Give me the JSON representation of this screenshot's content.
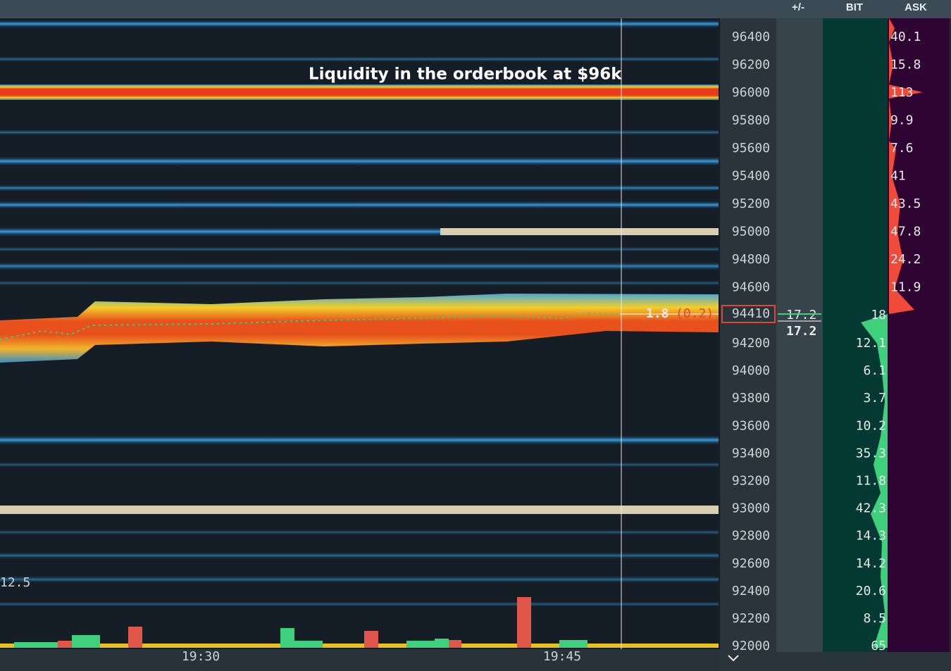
{
  "header": {
    "columns": [
      "+/-",
      "BIT",
      "ASK"
    ]
  },
  "annotation": "Liquidity in the orderbook at $96k",
  "price_ladder": [
    "96400",
    "96200",
    "96000",
    "95800",
    "95600",
    "95400",
    "95200",
    "95000",
    "94800",
    "94600",
    "94200",
    "94000",
    "93800",
    "93600",
    "93400",
    "93200",
    "93000",
    "92800",
    "92600",
    "92400",
    "92200",
    "92000"
  ],
  "current_price": {
    "price": "94410",
    "trade_size": "1.8",
    "delta": "(0.2)",
    "column_value": "17.2",
    "column_total": "17.2"
  },
  "ask_sizes": [
    "40.1",
    "15.8",
    "113",
    "9.9",
    "7.6",
    "41",
    "43.5",
    "47.8",
    "24.2",
    "11.9"
  ],
  "bid_sizes": [
    "18",
    "12.1",
    "6.1",
    "3.7",
    "10.2",
    "35.3",
    "11.8",
    "42.3",
    "14.3",
    "14.2",
    "20.6",
    "8.5",
    "65"
  ],
  "volume_scale_label": "12.5",
  "time_labels": [
    "19:30",
    "19:45"
  ]
}
